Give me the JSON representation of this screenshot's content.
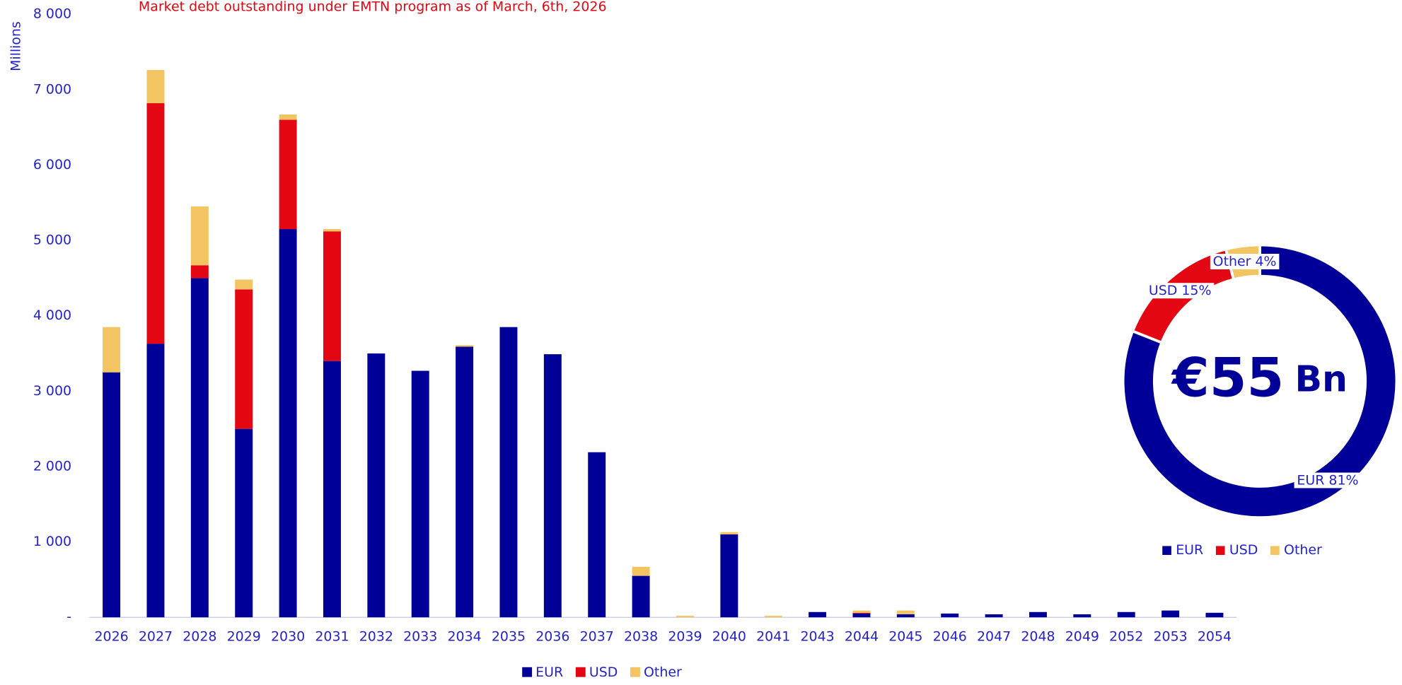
{
  "chart_data": [
    {
      "type": "bar",
      "title": "Market debt outstanding under EMTN program as of March, 6th, 2026",
      "y_label": "Millions",
      "categories": [
        "2026",
        "2027",
        "2028",
        "2029",
        "2030",
        "2031",
        "2032",
        "2033",
        "2034",
        "2035",
        "2036",
        "2037",
        "2038",
        "2039",
        "2040",
        "2041",
        "2043",
        "2044",
        "2045",
        "2046",
        "2047",
        "2048",
        "2049",
        "2052",
        "2053",
        "2054"
      ],
      "series": [
        {
          "name": "EUR",
          "color": "#000099",
          "values": [
            3250,
            3630,
            4500,
            2500,
            5150,
            3400,
            3500,
            3270,
            3590,
            3850,
            3490,
            2190,
            550,
            0,
            1100,
            0,
            70,
            50,
            40,
            50,
            40,
            70,
            40,
            70,
            90,
            60
          ]
        },
        {
          "name": "USD",
          "color": "#e30613",
          "values": [
            0,
            3190,
            170,
            1850,
            1450,
            1720,
            0,
            0,
            0,
            0,
            0,
            0,
            0,
            0,
            0,
            0,
            0,
            10,
            0,
            0,
            0,
            0,
            0,
            0,
            0,
            0
          ]
        },
        {
          "name": "Other",
          "color": "#f2c462",
          "values": [
            600,
            440,
            780,
            130,
            70,
            30,
            0,
            0,
            20,
            0,
            0,
            0,
            120,
            20,
            30,
            20,
            0,
            30,
            50,
            0,
            0,
            0,
            0,
            0,
            0,
            0
          ]
        }
      ],
      "ylim": [
        0,
        8000
      ],
      "yticks": [
        {
          "value": 0,
          "label": "-"
        },
        {
          "value": 1000,
          "label": "1 000"
        },
        {
          "value": 2000,
          "label": "2 000"
        },
        {
          "value": 3000,
          "label": "3 000"
        },
        {
          "value": 4000,
          "label": "4 000"
        },
        {
          "value": 5000,
          "label": "5 000"
        },
        {
          "value": 6000,
          "label": "6 000"
        },
        {
          "value": 7000,
          "label": "7 000"
        },
        {
          "value": 8000,
          "label": "8 000"
        }
      ],
      "legend": "bottom"
    },
    {
      "type": "pie",
      "categories": [
        "EUR",
        "USD",
        "Other"
      ],
      "values": [
        81,
        15,
        4
      ],
      "value_labels": [
        "EUR 81%",
        "USD 15%",
        "Other 4%"
      ],
      "colors": [
        "#000099",
        "#e30613",
        "#f2c462"
      ],
      "center_amount": "€55",
      "center_unit": "Bn",
      "legend": "bottom"
    }
  ]
}
